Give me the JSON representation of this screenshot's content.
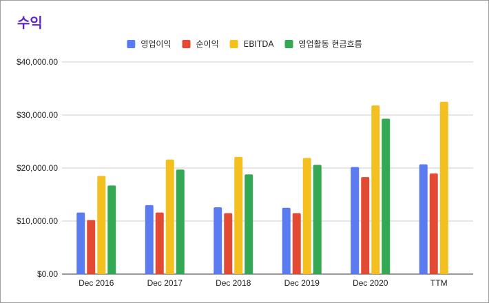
{
  "chart_data": {
    "type": "bar",
    "title": "수익",
    "xlabel": "",
    "ylabel": "",
    "categories": [
      "Dec 2016",
      "Dec 2017",
      "Dec 2018",
      "Dec 2019",
      "Dec 2020",
      "TTM"
    ],
    "series": [
      {
        "name": "영업이익",
        "color": "#5b7cf0",
        "values": [
          11600,
          13000,
          12600,
          12500,
          20200,
          20700
        ]
      },
      {
        "name": "순이익",
        "color": "#e34a33",
        "values": [
          10200,
          11600,
          11500,
          11500,
          18300,
          19000
        ]
      },
      {
        "name": "EBITDA",
        "color": "#f4c020",
        "values": [
          18500,
          21600,
          22100,
          21900,
          31800,
          32500
        ]
      },
      {
        "name": "영업활동 현금흐름",
        "color": "#34a853",
        "values": [
          16700,
          19700,
          18800,
          20600,
          29300,
          null
        ]
      }
    ],
    "ylim": [
      0,
      40000
    ],
    "yticks": [
      "$0.00",
      "$10,000.00",
      "$20,000.00",
      "$30,000.00",
      "$40,000.00"
    ],
    "grid": true,
    "legend": "top-center"
  }
}
